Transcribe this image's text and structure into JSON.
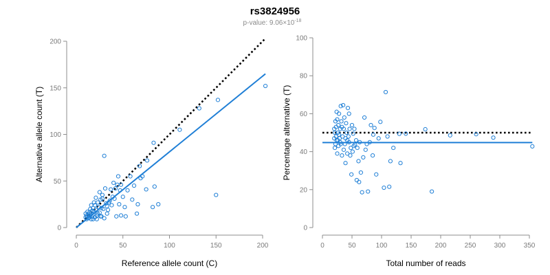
{
  "page": {
    "title": "rs3824956",
    "pvalue_prefix": "p-value: 9.06×10",
    "pvalue_exp": "-18"
  },
  "colors": {
    "points": "#1f7fd6",
    "fit_line": "#1f7fd6",
    "reference_line": "#000000"
  },
  "chart_data": [
    {
      "type": "scatter",
      "title": "rs3824956",
      "xlabel": "Reference allele count (C)",
      "ylabel": "Alternative allele count (T)",
      "xlim": [
        0,
        200
      ],
      "ylim": [
        0,
        200
      ],
      "xticks": [
        0,
        50,
        100,
        150,
        200
      ],
      "yticks": [
        0,
        50,
        100,
        150,
        200
      ],
      "fit_line": [
        [
          0,
          0
        ],
        [
          203,
          165
        ]
      ],
      "reference_line": [
        [
          0,
          0
        ],
        [
          203,
          203
        ]
      ],
      "points": [
        [
          203,
          152
        ],
        [
          111,
          105
        ],
        [
          132,
          128
        ],
        [
          152,
          137
        ],
        [
          150,
          35
        ],
        [
          83,
          91
        ],
        [
          76,
          72
        ],
        [
          68,
          66
        ],
        [
          69,
          53
        ],
        [
          58,
          55
        ],
        [
          84,
          44
        ],
        [
          88,
          25
        ],
        [
          82,
          22
        ],
        [
          66,
          25
        ],
        [
          75,
          41
        ],
        [
          62,
          45
        ],
        [
          53,
          12
        ],
        [
          48,
          46
        ],
        [
          47,
          40
        ],
        [
          45,
          55
        ],
        [
          44,
          46
        ],
        [
          42,
          42
        ],
        [
          40,
          48
        ],
        [
          39,
          33
        ],
        [
          38,
          24
        ],
        [
          37,
          41
        ],
        [
          35,
          27
        ],
        [
          34,
          19
        ],
        [
          33,
          15
        ],
        [
          32,
          26
        ],
        [
          31,
          42
        ],
        [
          30,
          77
        ],
        [
          30,
          10
        ],
        [
          29,
          20
        ],
        [
          28,
          31
        ],
        [
          27,
          21
        ],
        [
          26,
          30
        ],
        [
          25,
          16
        ],
        [
          24,
          22
        ],
        [
          23,
          27
        ],
        [
          22,
          13
        ],
        [
          21,
          19
        ],
        [
          20,
          24
        ],
        [
          20,
          11
        ],
        [
          19,
          17
        ],
        [
          18,
          14
        ],
        [
          18,
          21
        ],
        [
          17,
          12
        ],
        [
          17,
          18
        ],
        [
          16,
          15
        ],
        [
          16,
          9
        ],
        [
          15,
          20
        ],
        [
          15,
          13
        ],
        [
          14,
          11
        ],
        [
          14,
          16
        ],
        [
          13,
          14
        ],
        [
          13,
          10
        ],
        [
          12,
          12
        ],
        [
          12,
          17
        ],
        [
          11,
          9
        ],
        [
          11,
          13
        ],
        [
          10,
          11
        ],
        [
          10,
          15
        ],
        [
          19,
          27
        ],
        [
          22,
          9
        ],
        [
          26,
          12
        ],
        [
          28,
          35
        ],
        [
          36,
          29
        ],
        [
          41,
          31
        ],
        [
          43,
          12
        ],
        [
          46,
          25
        ],
        [
          50,
          33
        ],
        [
          55,
          40
        ],
        [
          60,
          30
        ],
        [
          65,
          15
        ],
        [
          71,
          55
        ],
        [
          16,
          24
        ],
        [
          21,
          32
        ],
        [
          25,
          38
        ],
        [
          33,
          23
        ],
        [
          48,
          13
        ],
        [
          52,
          22
        ],
        [
          18,
          9
        ],
        [
          23,
          15
        ],
        [
          27,
          12
        ]
      ]
    },
    {
      "type": "scatter",
      "xlabel": "Total number of reads",
      "ylabel": "Percentage alternative (T)",
      "xlim": [
        0,
        350
      ],
      "ylim": [
        0,
        100
      ],
      "xticks": [
        0,
        50,
        100,
        150,
        200,
        250,
        300,
        350
      ],
      "yticks": [
        0,
        20,
        40,
        60,
        80,
        100
      ],
      "fit_line": [
        [
          0,
          44.8
        ],
        [
          355,
          44.8
        ]
      ],
      "reference_line": [
        [
          0,
          50
        ],
        [
          355,
          50
        ]
      ],
      "points": [
        [
          355,
          42.8
        ],
        [
          216,
          48.6
        ],
        [
          260,
          49.2
        ],
        [
          289,
          47.4
        ],
        [
          185,
          19
        ],
        [
          174,
          51.8
        ],
        [
          107,
          71.4
        ],
        [
          141,
          49.5
        ],
        [
          130,
          49.4
        ],
        [
          132,
          34
        ],
        [
          120,
          42
        ],
        [
          115,
          35
        ],
        [
          113,
          21.5
        ],
        [
          110,
          48
        ],
        [
          104,
          21
        ],
        [
          98,
          55.7
        ],
        [
          95,
          47
        ],
        [
          91,
          28
        ],
        [
          88,
          52.5
        ],
        [
          86,
          49
        ],
        [
          82,
          54
        ],
        [
          80,
          45
        ],
        [
          77,
          19
        ],
        [
          73,
          41
        ],
        [
          71,
          58
        ],
        [
          69,
          37
        ],
        [
          67,
          18.6
        ],
        [
          65,
          29
        ],
        [
          63,
          45
        ],
        [
          61,
          35
        ],
        [
          59,
          42
        ],
        [
          57,
          46
        ],
        [
          55,
          43.6
        ],
        [
          54,
          52
        ],
        [
          53,
          43
        ],
        [
          52,
          49.5
        ],
        [
          51,
          40
        ],
        [
          50,
          54
        ],
        [
          49,
          28
        ],
        [
          48,
          42
        ],
        [
          47,
          38
        ],
        [
          46,
          52
        ],
        [
          45,
          60
        ],
        [
          44,
          48
        ],
        [
          43,
          63
        ],
        [
          42,
          46
        ],
        [
          41,
          50
        ],
        [
          40,
          55
        ],
        [
          39,
          34
        ],
        [
          38,
          44
        ],
        [
          37,
          58
        ],
        [
          36,
          52
        ],
        [
          35,
          64.5
        ],
        [
          34,
          48
        ],
        [
          33,
          38
        ],
        [
          32,
          56
        ],
        [
          31,
          44
        ],
        [
          31,
          64
        ],
        [
          30,
          52
        ],
        [
          29,
          47
        ],
        [
          28,
          60
        ],
        [
          27,
          43
        ],
        [
          27,
          54
        ],
        [
          26,
          50
        ],
        [
          25,
          39
        ],
        [
          25,
          57
        ],
        [
          24,
          46
        ],
        [
          24,
          61
        ],
        [
          23,
          48
        ],
        [
          23,
          53
        ],
        [
          22,
          44
        ],
        [
          22,
          56
        ],
        [
          21,
          50
        ],
        [
          21,
          42
        ],
        [
          20,
          47
        ],
        [
          20,
          52
        ],
        [
          26,
          46
        ],
        [
          28,
          49
        ],
        [
          30,
          45
        ],
        [
          33,
          53
        ],
        [
          36,
          41
        ],
        [
          39,
          47
        ],
        [
          42,
          39
        ],
        [
          45,
          45
        ],
        [
          58,
          25
        ],
        [
          62,
          24
        ],
        [
          75,
          44
        ],
        [
          85,
          38
        ]
      ]
    }
  ]
}
